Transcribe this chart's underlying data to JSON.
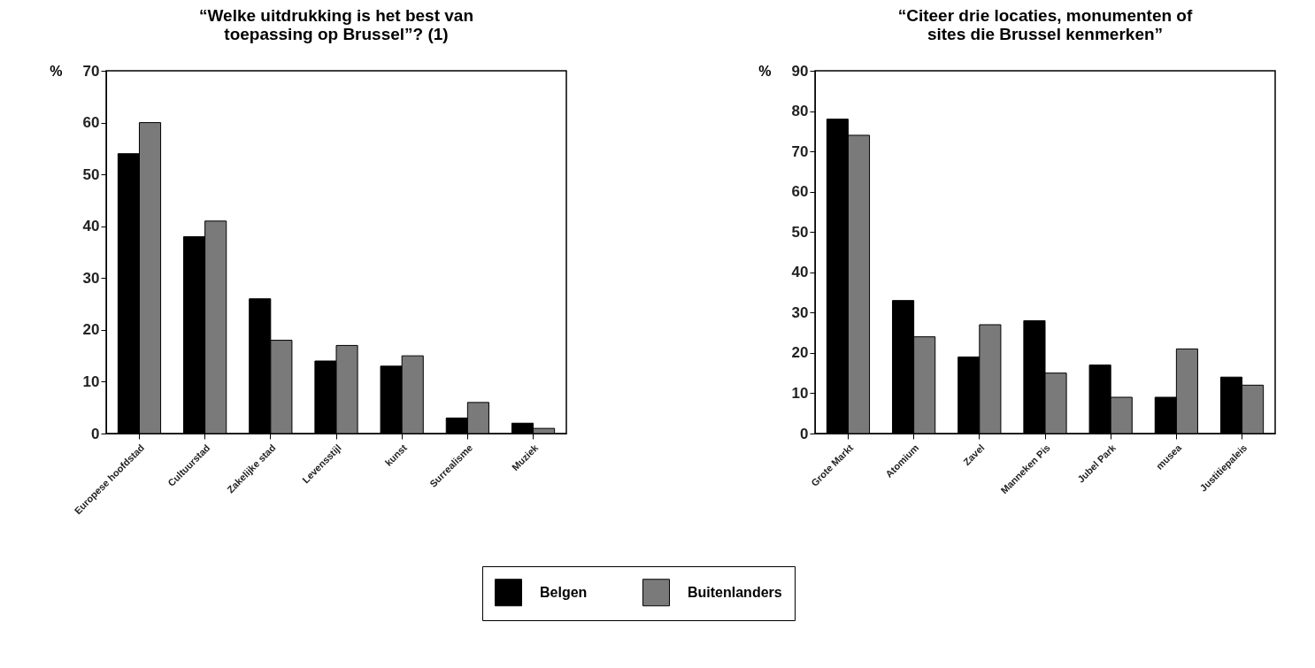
{
  "chart_data": [
    {
      "type": "bar",
      "title": "“Welke uitdrukking is het best van\ntoepassing op Brussel”? (1)",
      "ylabel": "%",
      "categories": [
        "Europese hoofdstad",
        "Cultuurstad",
        "Zakelijke stad",
        "Levensstijl",
        "kunst",
        "Surrealisme",
        "Muziek"
      ],
      "series": [
        {
          "name": "Belgen",
          "color": "#000000",
          "values": [
            54,
            38,
            26,
            14,
            13,
            3,
            2
          ]
        },
        {
          "name": "Buitenlanders",
          "color": "#7a7a7a",
          "values": [
            60,
            41,
            18,
            17,
            15,
            6,
            1
          ]
        }
      ],
      "ylim": [
        0,
        70
      ],
      "yticks": [
        0,
        10,
        20,
        30,
        40,
        50,
        60,
        70
      ],
      "grid": false,
      "legend": "bottom"
    },
    {
      "type": "bar",
      "title": "“Citeer drie locaties, monumenten of\nsites die Brussel kenmerken”",
      "ylabel": "%",
      "categories": [
        "Grote Markt",
        "Atomium",
        "Zavel",
        "Manneken Pis",
        "Jubel Park",
        "musea",
        "Justitiepaleis"
      ],
      "series": [
        {
          "name": "Belgen",
          "color": "#000000",
          "values": [
            78,
            33,
            19,
            28,
            17,
            9,
            14
          ]
        },
        {
          "name": "Buitenlanders",
          "color": "#7a7a7a",
          "values": [
            74,
            24,
            27,
            15,
            9,
            21,
            12
          ]
        }
      ],
      "ylim": [
        0,
        90
      ],
      "yticks": [
        0,
        10,
        20,
        30,
        40,
        50,
        60,
        70,
        80,
        90
      ],
      "grid": false,
      "legend": "bottom"
    }
  ]
}
